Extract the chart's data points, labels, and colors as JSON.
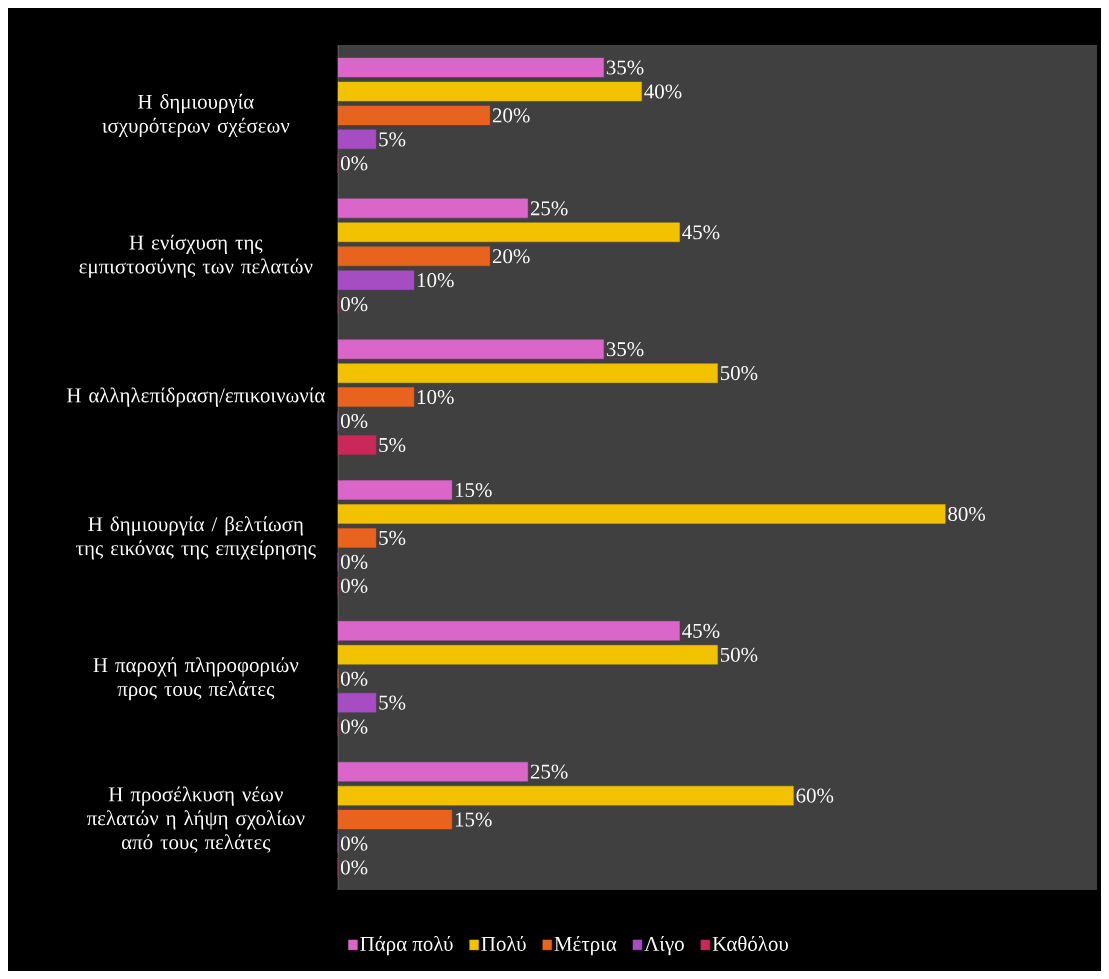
{
  "chart_data": {
    "type": "bar",
    "orientation": "horizontal",
    "categories": [
      "Η δημιουργία ισχυρότερων σχέσεων",
      "Η ενίσχυση της εμπιστοσύνης των πελατών",
      "Η αλληλεπίδραση/επικοινωνία",
      "Η δημιουργία / βελτίωση της εικόνας της επιχείρησης",
      "Η παροχή πληροφοριών προς τους πελάτες",
      "Η προσέλκυση νέων πελατών η λήψη σχολίων από τους πελάτες"
    ],
    "series": [
      {
        "name": "Πάρα πολύ",
        "color": "#d966c8",
        "values": [
          35,
          25,
          35,
          15,
          45,
          25
        ],
        "value_labels": [
          "35%",
          "25%",
          "35%",
          "15%",
          "45%",
          "25%"
        ]
      },
      {
        "name": "Πολύ",
        "color": "#f2c200",
        "values": [
          40,
          45,
          50,
          80,
          50,
          60
        ],
        "value_labels": [
          "40%",
          "45%",
          "50%",
          "80%",
          "50%",
          "60%"
        ]
      },
      {
        "name": "Μέτρια",
        "color": "#e8641e",
        "values": [
          20,
          20,
          10,
          5,
          0,
          15
        ],
        "value_labels": [
          "20%",
          "20%",
          "10%",
          "5%",
          "0%",
          "15%"
        ]
      },
      {
        "name": "Λίγο",
        "color": "#a64dc4",
        "values": [
          5,
          10,
          0,
          0,
          5,
          0
        ],
        "value_labels": [
          "5%",
          "10%",
          "0%",
          "0%",
          "5%",
          "0%"
        ]
      },
      {
        "name": "Καθόλου",
        "color": "#c8285a",
        "values": [
          0,
          0,
          5,
          0,
          0,
          0
        ],
        "value_labels": [
          "0%",
          "0%",
          "5%",
          "0%",
          "0%",
          "0%"
        ]
      }
    ],
    "xlim": [
      0,
      100
    ],
    "tick_labels": "y",
    "legend": "bottom"
  }
}
